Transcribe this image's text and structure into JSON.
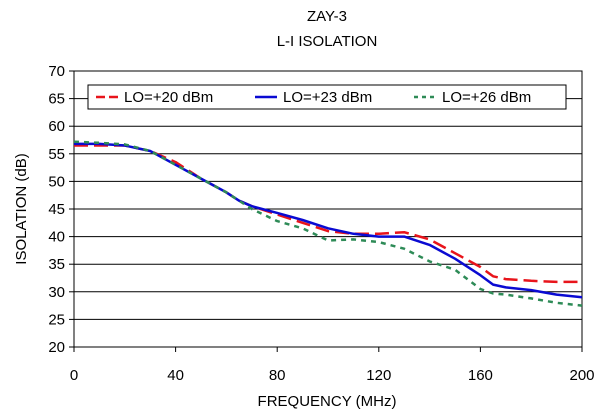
{
  "chart_data": {
    "type": "line",
    "title": "ZAY-3",
    "subtitle": "L-I ISOLATION",
    "xlabel": "FREQUENCY (MHz)",
    "ylabel": "ISOLATION (dB)",
    "xlim": [
      0,
      200
    ],
    "ylim": [
      20,
      70
    ],
    "xticks": [
      0,
      40,
      80,
      120,
      160,
      200
    ],
    "yticks": [
      20,
      25,
      30,
      35,
      40,
      45,
      50,
      55,
      60,
      65,
      70
    ],
    "grid": "horizontal",
    "legend_position": "top",
    "series": [
      {
        "name": "LO=+20 dBm",
        "color": "#e8141b",
        "dash": "long-dash",
        "x": [
          0,
          10,
          20,
          30,
          40,
          50,
          60,
          65,
          70,
          80,
          90,
          100,
          110,
          120,
          130,
          140,
          150,
          160,
          165,
          170,
          180,
          190,
          200
        ],
        "y": [
          56.5,
          56.5,
          56.5,
          55.5,
          53.5,
          50.5,
          48,
          46.5,
          45.5,
          44,
          42.5,
          41,
          40.5,
          40.5,
          40.8,
          39.5,
          37,
          34.5,
          32.8,
          32.3,
          32,
          31.8,
          31.8
        ]
      },
      {
        "name": "LO=+23 dBm",
        "color": "#0a0ad2",
        "dash": "solid",
        "x": [
          0,
          10,
          20,
          30,
          40,
          50,
          60,
          65,
          70,
          80,
          90,
          100,
          110,
          120,
          130,
          140,
          150,
          160,
          165,
          170,
          180,
          190,
          200
        ],
        "y": [
          56.8,
          56.8,
          56.5,
          55.5,
          53,
          50.5,
          48,
          46.5,
          45.5,
          44.3,
          43,
          41.5,
          40.5,
          40,
          40,
          38.5,
          36,
          33,
          31.3,
          30.8,
          30.3,
          29.5,
          29
        ]
      },
      {
        "name": "LO=+26 dBm",
        "color": "#2e8b57",
        "dash": "short-dash",
        "x": [
          0,
          10,
          20,
          30,
          40,
          50,
          60,
          65,
          70,
          80,
          90,
          100,
          110,
          120,
          130,
          140,
          150,
          160,
          165,
          170,
          180,
          190,
          200
        ],
        "y": [
          57.2,
          57,
          56.7,
          55.5,
          53,
          50.5,
          48,
          46.5,
          45,
          42.8,
          41.5,
          39.3,
          39.5,
          39,
          37.8,
          35.5,
          34,
          30.5,
          29.7,
          29.5,
          28.8,
          28,
          27.5
        ]
      }
    ]
  }
}
